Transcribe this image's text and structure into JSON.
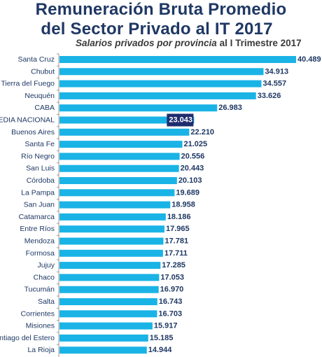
{
  "header": {
    "title_line1": "Remuneración Bruta Promedio",
    "title_line2": "del Sector Privado al IT 2017",
    "subtitle_main": "Salarios privados por provincia",
    "subtitle_tail": " al I Trimestre 2017"
  },
  "colors": {
    "bar": "#1ab3e6",
    "highlight": "#1f2c6e",
    "text": "#1f3864",
    "axis": "#9a9a9a"
  },
  "chart_data": {
    "type": "bar",
    "orientation": "horizontal",
    "title": "Remuneración Bruta Promedio del Sector Privado al IT 2017",
    "subtitle": "Salarios privados por provincia al I Trimestre 2017",
    "categories": [
      "Santa Cruz",
      "Chubut",
      "Tierra del Fuego",
      "Neuquén",
      "CABA",
      "MEDIA NACIONAL",
      "Buenos Aires",
      "Santa Fe",
      "Río Negro",
      "San Luis",
      "Córdoba",
      "La Pampa",
      "San Juan",
      "Catamarca",
      "Entre Ríos",
      "Mendoza",
      "Formosa",
      "Jujuy",
      "Chaco",
      "Tucumán",
      "Salta",
      "Corrientes",
      "Misiones",
      "Santiago del Estero",
      "La Rioja"
    ],
    "values": [
      40489,
      34913,
      34557,
      33626,
      26983,
      23043,
      22210,
      21025,
      20556,
      20443,
      20103,
      19689,
      18958,
      18186,
      17965,
      17781,
      17711,
      17285,
      17053,
      16970,
      16743,
      16703,
      15917,
      15185,
      14944
    ],
    "value_labels": [
      "40.489",
      "34.913",
      "34.557",
      "33.626",
      "26.983",
      "23.043",
      "22.210",
      "21.025",
      "20.556",
      "20.443",
      "20.103",
      "19.689",
      "18.958",
      "18.186",
      "17.965",
      "17.781",
      "17.711",
      "17.285",
      "17.053",
      "16.970",
      "16.743",
      "16.703",
      "15.917",
      "15.185",
      "14.944"
    ],
    "highlight_category": "MEDIA NACIONAL",
    "xlim": [
      0,
      40489
    ],
    "grid": false,
    "legend": "none"
  }
}
